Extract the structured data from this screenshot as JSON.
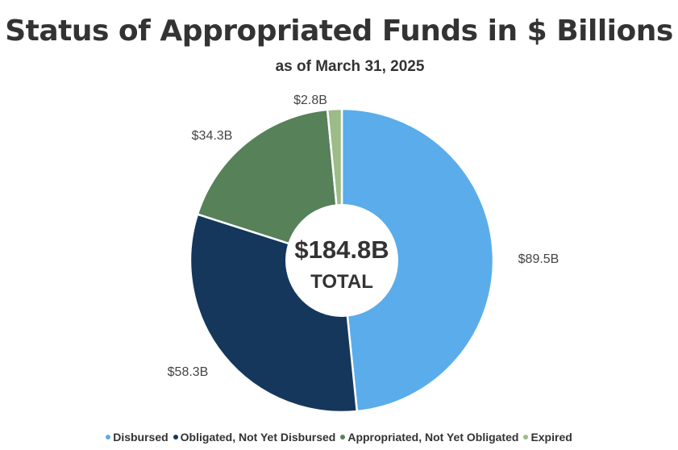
{
  "title": "Status of Appropriated Funds in $ Billions",
  "subtitle": "as of March 31, 2025",
  "chart_data": {
    "type": "pie",
    "variant": "donut",
    "title": "Status of Appropriated Funds in $ Billions",
    "subtitle": "as of March 31, 2025",
    "unit": "$ Billions",
    "total_value": "$184.8B",
    "total_caption": "TOTAL",
    "legend_position": "bottom",
    "slices": [
      {
        "name": "Disbursed",
        "value": 89.5,
        "label": "$89.5B",
        "color": "#5AADEA"
      },
      {
        "name": "Obligated, Not Yet Disbursed",
        "value": 58.3,
        "label": "$58.3B",
        "color": "#15375C"
      },
      {
        "name": "Appropriated, Not Yet Obligated",
        "value": 34.3,
        "label": "$34.3B",
        "color": "#568159"
      },
      {
        "name": "Expired",
        "value": 2.8,
        "label": "$2.8B",
        "color": "#9CBB86"
      }
    ]
  }
}
